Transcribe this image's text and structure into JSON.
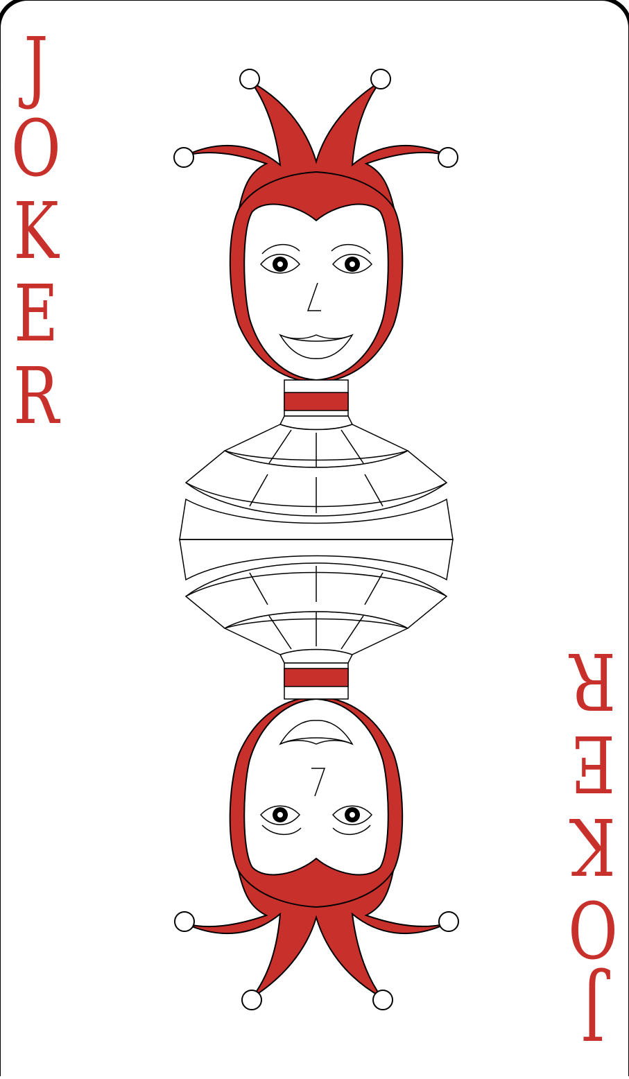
{
  "card": {
    "rank_letters": [
      "J",
      "O",
      "K",
      "E",
      "R"
    ],
    "colors": {
      "red": "#c8302b",
      "ink": "#000000",
      "paper": "#ffffff"
    },
    "figure": "jester-icon"
  }
}
